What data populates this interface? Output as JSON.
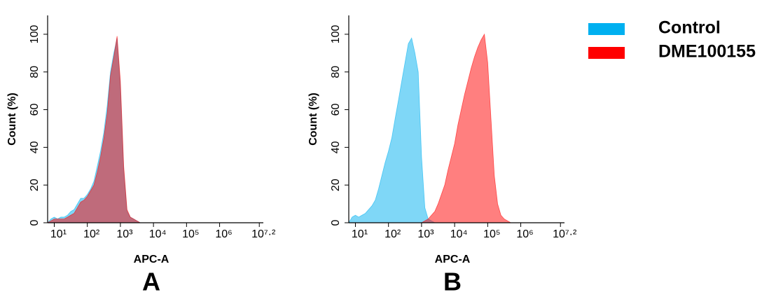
{
  "chart_data": [
    {
      "type": "area",
      "panel_label": "A",
      "xlabel": "APC-A",
      "ylabel": "Count  (%)",
      "xscale": "log",
      "x": [
        6.31,
        7.94,
        10,
        12.6,
        15.8,
        20,
        25.1,
        31.6,
        39.8,
        50.1,
        63.1,
        79.4,
        100,
        126,
        158,
        200,
        251,
        316,
        398,
        501,
        631,
        794,
        1000,
        1259,
        1585,
        1995,
        2512,
        3162,
        3981,
        5012,
        6310,
        7943,
        10000,
        12589,
        15849,
        19953,
        25119,
        31623,
        39811,
        50119,
        63096,
        79433,
        100000,
        125893,
        158489,
        199526,
        251189,
        316228,
        398107,
        501187,
        630957,
        794328,
        1000000
      ],
      "series": [
        {
          "name": "Control",
          "color": "#00b0f0",
          "values": [
            0,
            2,
            3,
            2,
            3,
            3,
            4,
            6,
            7,
            10,
            13,
            13,
            15,
            18,
            22,
            30,
            38,
            48,
            62,
            80,
            90,
            98,
            72,
            28,
            6,
            3,
            2,
            1,
            0,
            0,
            0,
            0,
            0,
            0,
            0,
            0,
            0,
            0,
            0,
            0,
            0,
            0,
            0,
            0,
            0,
            0,
            0,
            0,
            0,
            0,
            0,
            0,
            0
          ]
        },
        {
          "name": "DME100155",
          "color": "#ff0000",
          "values": [
            0,
            1,
            2,
            2,
            2,
            2,
            3,
            4,
            5,
            8,
            11,
            12,
            14,
            17,
            20,
            27,
            35,
            45,
            58,
            78,
            88,
            99,
            75,
            30,
            7,
            3,
            2,
            1,
            0,
            0,
            0,
            0,
            0,
            0,
            0,
            0,
            0,
            0,
            0,
            0,
            0,
            0,
            0,
            0,
            0,
            0,
            0,
            0,
            0,
            0,
            0,
            0,
            0
          ]
        }
      ],
      "xlim": [
        6.3,
        21000000
      ],
      "xticks": [
        {
          "value": 10,
          "label": "10¹"
        },
        {
          "value": 100,
          "label": "10²"
        },
        {
          "value": 1000,
          "label": "10³"
        },
        {
          "value": 10000,
          "label": "10⁴"
        },
        {
          "value": 100000,
          "label": "10⁵"
        },
        {
          "value": 1000000,
          "label": "10⁶"
        },
        {
          "value": 15848932,
          "label": "10⁷·²"
        }
      ],
      "ylim": [
        0,
        110
      ],
      "yticks": [
        0,
        20,
        40,
        60,
        80,
        100
      ]
    },
    {
      "type": "area",
      "panel_label": "B",
      "xlabel": "APC-A",
      "ylabel": "Count  (%)",
      "xscale": "log",
      "x": [
        6.31,
        7.94,
        10,
        12.6,
        15.8,
        20,
        25.1,
        31.6,
        39.8,
        50.1,
        63.1,
        79.4,
        100,
        126,
        158,
        200,
        251,
        316,
        398,
        501,
        631,
        794,
        1000,
        1259,
        1585,
        1995,
        2512,
        3162,
        3981,
        5012,
        6310,
        7943,
        10000,
        12589,
        15849,
        19953,
        25119,
        31623,
        39811,
        50119,
        63096,
        79433,
        100000,
        125893,
        158489,
        199526,
        251189,
        316228,
        398107,
        501187,
        630957,
        794328,
        1000000
      ],
      "series": [
        {
          "name": "Control",
          "color": "#00b0f0",
          "values": [
            0,
            3,
            4,
            3,
            4,
            5,
            7,
            9,
            12,
            18,
            25,
            32,
            38,
            45,
            55,
            65,
            75,
            85,
            95,
            98,
            90,
            80,
            35,
            8,
            2,
            1,
            0,
            0,
            0,
            0,
            0,
            0,
            0,
            0,
            0,
            0,
            0,
            0,
            0,
            0,
            0,
            0,
            0,
            0,
            0,
            0,
            0,
            0,
            0,
            0,
            0,
            0,
            0
          ]
        },
        {
          "name": "DME100155",
          "color": "#ff0000",
          "values": [
            0,
            0,
            0,
            0,
            0,
            0,
            0,
            0,
            0,
            0,
            0,
            0,
            0,
            0,
            0,
            0,
            0,
            0,
            0,
            0,
            0,
            0,
            0,
            1,
            2,
            4,
            6,
            10,
            15,
            20,
            28,
            35,
            42,
            52,
            60,
            68,
            75,
            82,
            88,
            93,
            97,
            100,
            85,
            55,
            25,
            10,
            4,
            2,
            1,
            0,
            0,
            0,
            0
          ]
        }
      ],
      "xlim": [
        6.3,
        21000000
      ],
      "xticks": [
        {
          "value": 10,
          "label": "10¹"
        },
        {
          "value": 100,
          "label": "10²"
        },
        {
          "value": 1000,
          "label": "10³"
        },
        {
          "value": 10000,
          "label": "10⁴"
        },
        {
          "value": 100000,
          "label": "10⁵"
        },
        {
          "value": 1000000,
          "label": "10⁶"
        },
        {
          "value": 15848932,
          "label": "10⁷·²"
        }
      ],
      "ylim": [
        0,
        110
      ],
      "yticks": [
        0,
        20,
        40,
        60,
        80,
        100
      ]
    }
  ]
}
